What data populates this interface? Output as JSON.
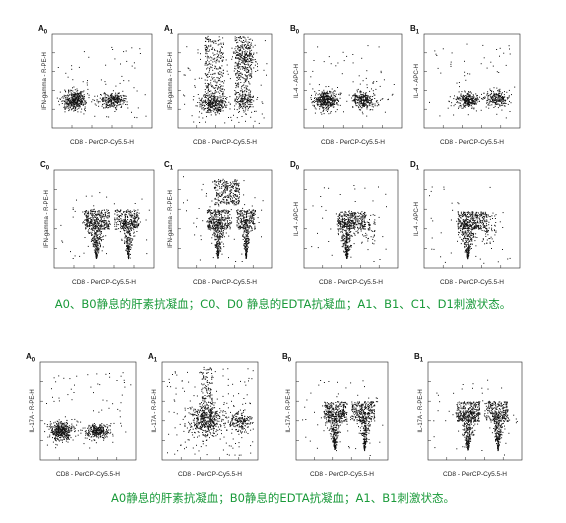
{
  "panels": [
    {
      "label": "A",
      "sub": "0",
      "ylabel": "IFN-gamma - R-PE-H",
      "xlabel": "CD8 - PerCP-Cy5.5-H",
      "pattern": "two-blobs"
    },
    {
      "label": "A",
      "sub": "1",
      "ylabel": "IFN-gamma - R-PE-H",
      "xlabel": "CD8 - PerCP-Cy5.5-H",
      "pattern": "stim-vertical"
    },
    {
      "label": "B",
      "sub": "0",
      "ylabel": "IL-4 - APC-H",
      "xlabel": "CD8 - PerCP-Cy5.5-H",
      "pattern": "two-blobs"
    },
    {
      "label": "B",
      "sub": "1",
      "ylabel": "IL-4 - APC-H",
      "xlabel": "CD8 - PerCP-Cy5.5-H",
      "pattern": "two-blobs-small"
    },
    {
      "label": "C",
      "sub": "0",
      "ylabel": "IFN-gamma - R-PE-H",
      "xlabel": "CD8 - PerCP-Cy5.5-H",
      "pattern": "edta"
    },
    {
      "label": "C",
      "sub": "1",
      "ylabel": "IFN-gamma - R-PE-H",
      "xlabel": "CD8 - PerCP-Cy5.5-H",
      "pattern": "edta-stim"
    },
    {
      "label": "D",
      "sub": "0",
      "ylabel": "IL-4 - APC-H",
      "xlabel": "CD8 - PerCP-Cy5.5-H",
      "pattern": "edta-one"
    },
    {
      "label": "D",
      "sub": "1",
      "ylabel": "IL-4 - APC-H",
      "xlabel": "CD8 - PerCP-Cy5.5-H",
      "pattern": "edta-one"
    },
    {
      "label": "A",
      "sub": "0",
      "ylabel": "IL-17A - R-PE-H",
      "xlabel": "CD8 - PerCP-Cy5.5-H",
      "pattern": "two-blobs"
    },
    {
      "label": "A",
      "sub": "1",
      "ylabel": "IL-17A - R-PE-H",
      "xlabel": "CD8 - PerCP-Cy5.5-H",
      "pattern": "stim-17"
    },
    {
      "label": "B",
      "sub": "0",
      "ylabel": "IL-17A - R-PE-H",
      "xlabel": "CD8 - PerCP-Cy5.5-H",
      "pattern": "edta"
    },
    {
      "label": "B",
      "sub": "1",
      "ylabel": "IL-17A - R-PE-H",
      "xlabel": "CD8 - PerCP-Cy5.5-H",
      "pattern": "edta"
    }
  ],
  "captions": {
    "top": "A0、B0静息的肝素抗凝血；C0、D0 静息的EDTA抗凝血；A1、B1、C1、D1刺激状态。",
    "bottom": "A0静息的肝素抗凝血；B0静息的EDTA抗凝血；A1、B1刺激状态。"
  },
  "colors": {
    "caption": "#1a9a3a",
    "dots": "#111111",
    "axis": "#222222"
  },
  "chart_data": {
    "type": "scatter",
    "x_scale": "log",
    "y_scale": "log",
    "xlim": [
      1,
      100000
    ],
    "ylim": [
      1,
      100000
    ]
  }
}
